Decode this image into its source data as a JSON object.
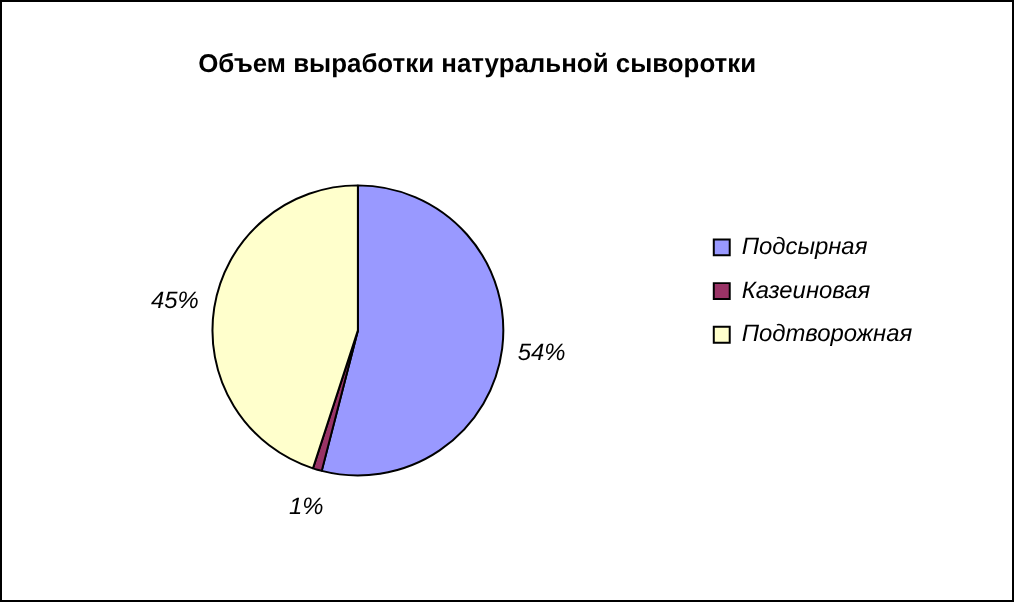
{
  "chart_data": {
    "type": "pie",
    "title": "Объем выработки натуральной сыворотки",
    "categories": [
      "Подсырная",
      "Казеиновая",
      "Подтворожная"
    ],
    "values": [
      54,
      1,
      45
    ],
    "colors": [
      "#9999ff",
      "#993366",
      "#ffffcc"
    ],
    "value_labels": [
      "54%",
      "1%",
      "45%"
    ],
    "legend": "right"
  }
}
